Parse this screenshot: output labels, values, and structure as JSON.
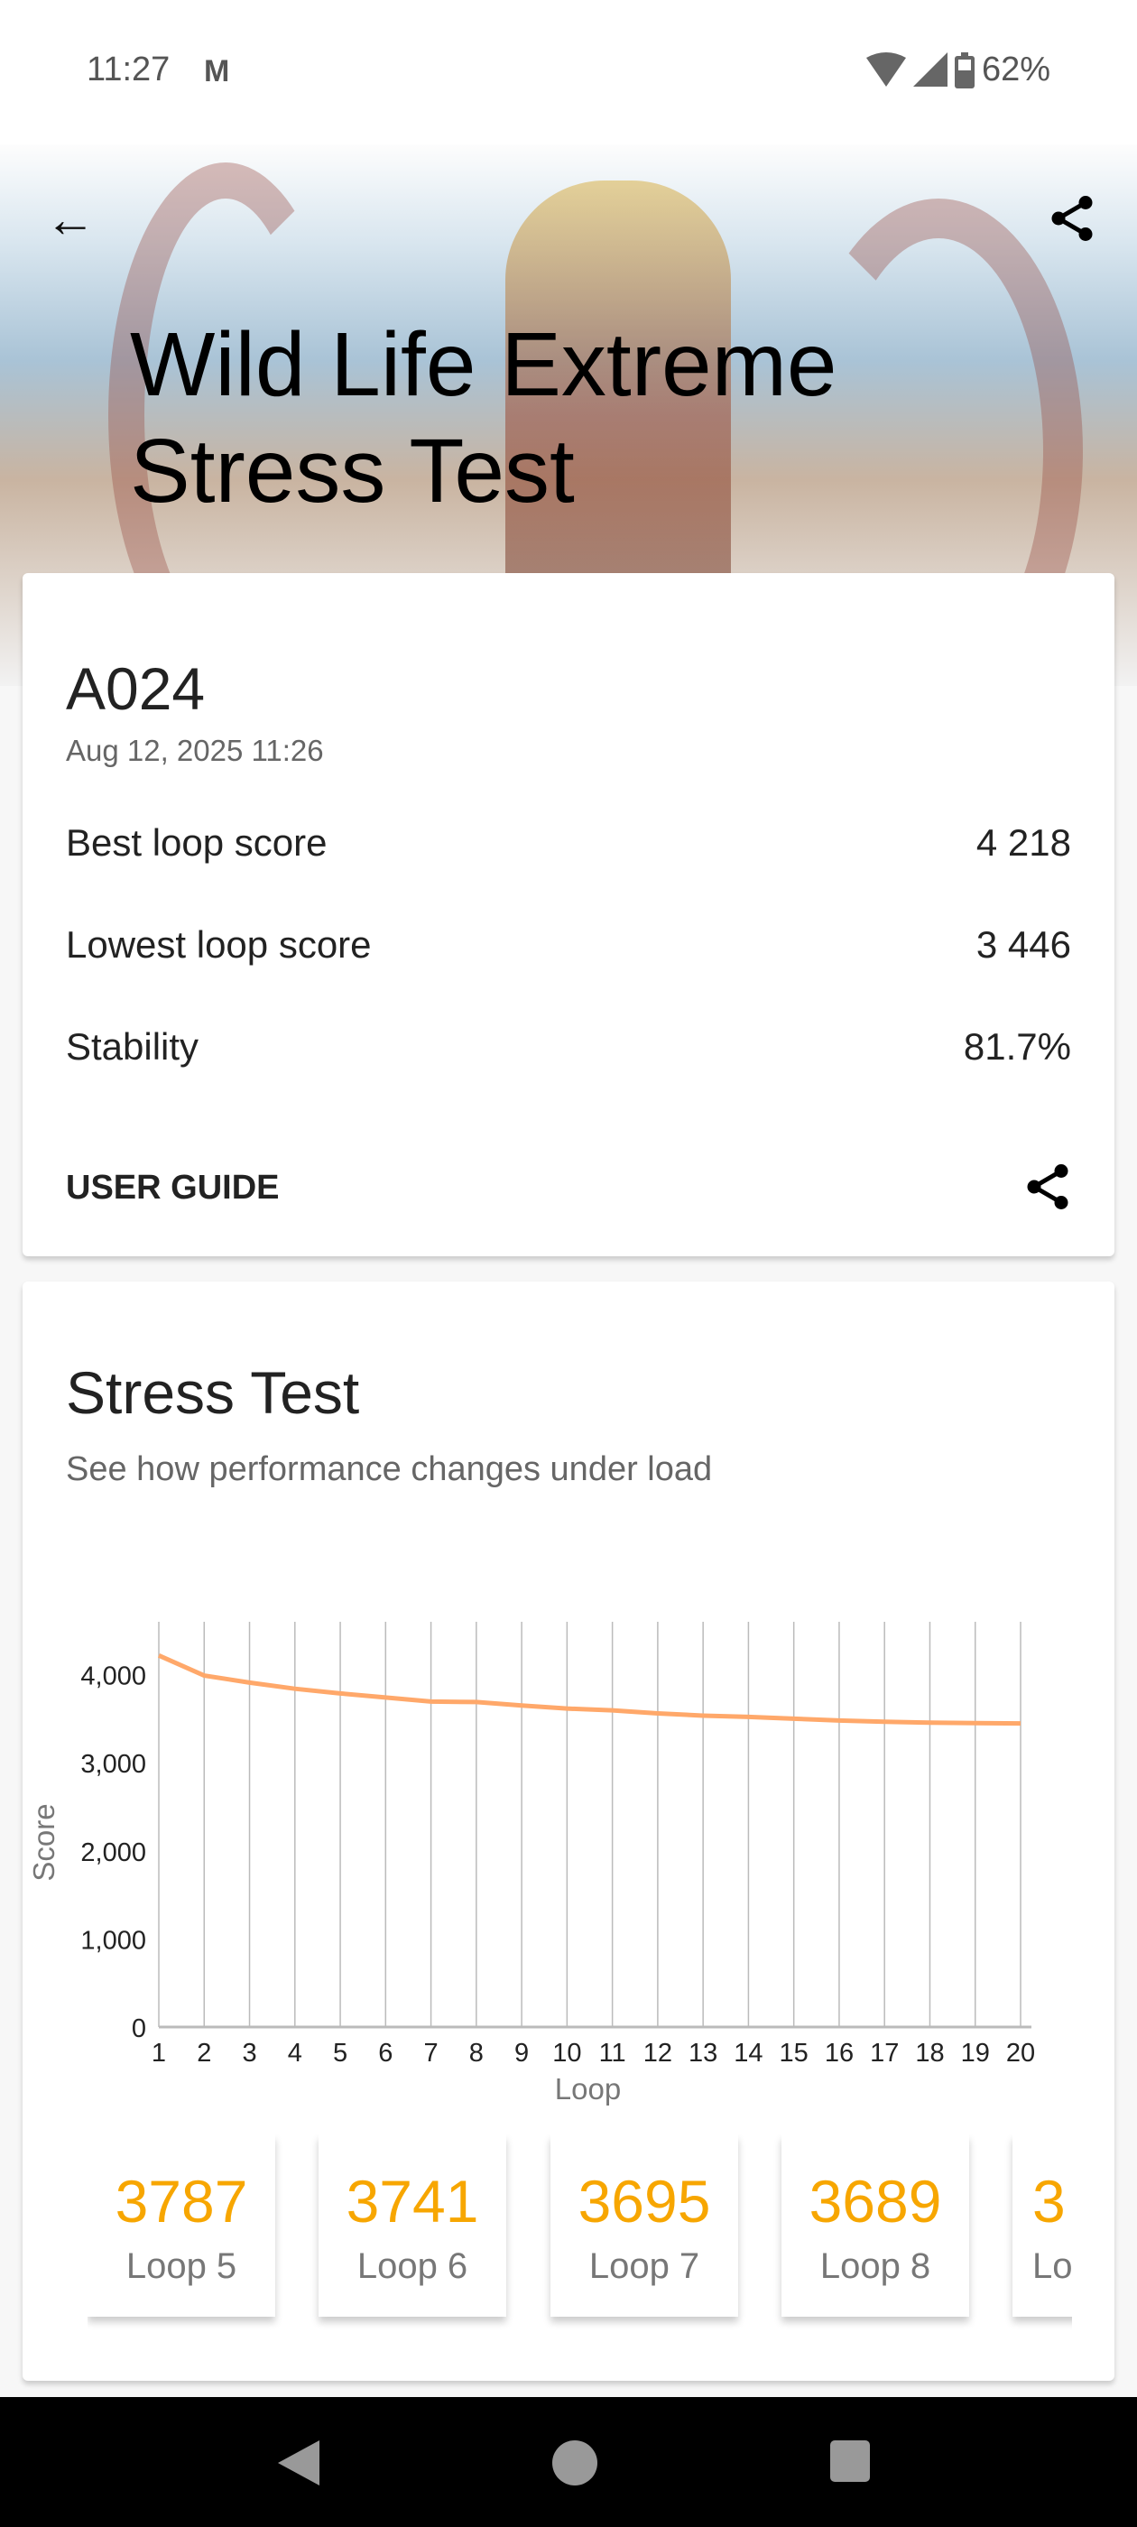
{
  "status_bar": {
    "time": "11:27",
    "notification_icon": "gmail-icon",
    "battery": "62%"
  },
  "header": {
    "title_line1": "Wild Life Extreme",
    "title_line2": "Stress Test"
  },
  "summary": {
    "device": "A024",
    "date": "Aug 12, 2025 11:26",
    "rows": [
      {
        "label": "Best loop score",
        "value": "4 218"
      },
      {
        "label": "Lowest loop score",
        "value": "3 446"
      },
      {
        "label": "Stability",
        "value": "81.7%"
      }
    ],
    "user_guide": "USER GUIDE"
  },
  "stress": {
    "title": "Stress Test",
    "subtitle": "See how performance changes under load",
    "tiles": [
      {
        "value": "3787",
        "label": "Loop 5"
      },
      {
        "value": "3741",
        "label": "Loop 6"
      },
      {
        "value": "3695",
        "label": "Loop 7"
      },
      {
        "value": "3689",
        "label": "Loop 8"
      },
      {
        "value": "3",
        "label": "Lo"
      }
    ]
  },
  "chart_data": {
    "type": "line",
    "xlabel": "Loop",
    "ylabel": "Score",
    "x": [
      1,
      2,
      3,
      4,
      5,
      6,
      7,
      8,
      9,
      10,
      11,
      12,
      13,
      14,
      15,
      16,
      17,
      18,
      19,
      20
    ],
    "values": [
      4218,
      3990,
      3910,
      3840,
      3787,
      3741,
      3695,
      3689,
      3650,
      3615,
      3595,
      3560,
      3535,
      3520,
      3500,
      3480,
      3465,
      3455,
      3450,
      3446
    ],
    "yticks": [
      "0",
      "1,000",
      "2,000",
      "3,000",
      "4,000"
    ],
    "ylim": [
      0,
      4600
    ],
    "xlim": [
      1,
      20
    ],
    "grid": "vertical",
    "line_color": "#ffa86a"
  },
  "colors": {
    "accent": "#f7a600"
  }
}
